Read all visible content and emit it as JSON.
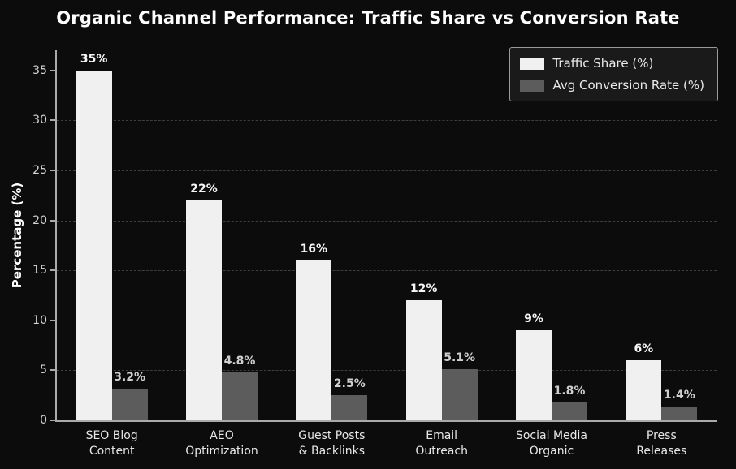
{
  "colors": {
    "background": "#0c0c0c",
    "grid": "#3e3e3e",
    "axis": "#aaaaaa",
    "text": "#e8e8e8"
  },
  "chart_data": {
    "type": "bar",
    "title": "Organic Channel Performance: Traffic Share vs Conversion Rate",
    "xlabel": "",
    "ylabel": "Percentage (%)",
    "ylim": [
      0,
      37
    ],
    "yticks": [
      0,
      5,
      10,
      15,
      20,
      25,
      30,
      35
    ],
    "grid": "dashed-horizontal",
    "legend_position": "top-right",
    "categories": [
      "SEO Blog\nContent",
      "AEO\nOptimization",
      "Guest Posts\n& Backlinks",
      "Email\nOutreach",
      "Social Media\nOrganic",
      "Press\nReleases"
    ],
    "series": [
      {
        "name": "Traffic Share (%)",
        "color": "#f0f0f0",
        "label_color": "#f5f5f5",
        "values": [
          35,
          22,
          16,
          12,
          9,
          6
        ],
        "labels": [
          "35%",
          "22%",
          "16%",
          "12%",
          "9%",
          "6%"
        ]
      },
      {
        "name": "Avg Conversion Rate (%)",
        "color": "#5c5c5c",
        "label_color": "#cfcfcf",
        "values": [
          3.2,
          4.8,
          2.5,
          5.1,
          1.8,
          1.4
        ],
        "labels": [
          "3.2%",
          "4.8%",
          "2.5%",
          "5.1%",
          "1.8%",
          "1.4%"
        ]
      }
    ]
  }
}
